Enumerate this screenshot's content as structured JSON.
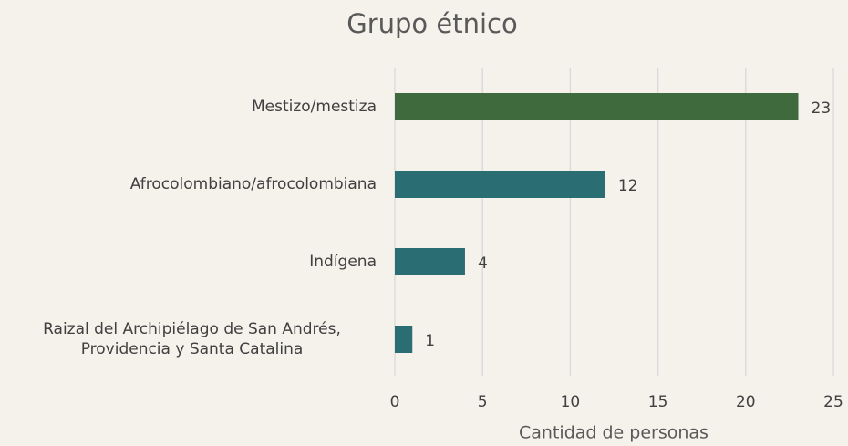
{
  "chart_data": {
    "type": "barh",
    "title": "Grupo étnico",
    "xlabel": "Cantidad de personas",
    "categories": [
      "Mestizo/mestiza",
      "Afrocolombiano/afrocolombiana",
      "Indígena",
      "Raizal del Archipiélago de San Andrés, Providencia y Santa Catalina"
    ],
    "values": [
      23,
      12,
      4,
      1
    ],
    "colors": [
      "#3e6a3e",
      "#2a6d73",
      "#2a6d73",
      "#2a6d73"
    ],
    "xlim": [
      0,
      25
    ],
    "xticks": [
      0,
      5,
      10,
      15,
      20,
      25
    ],
    "grid": true
  }
}
